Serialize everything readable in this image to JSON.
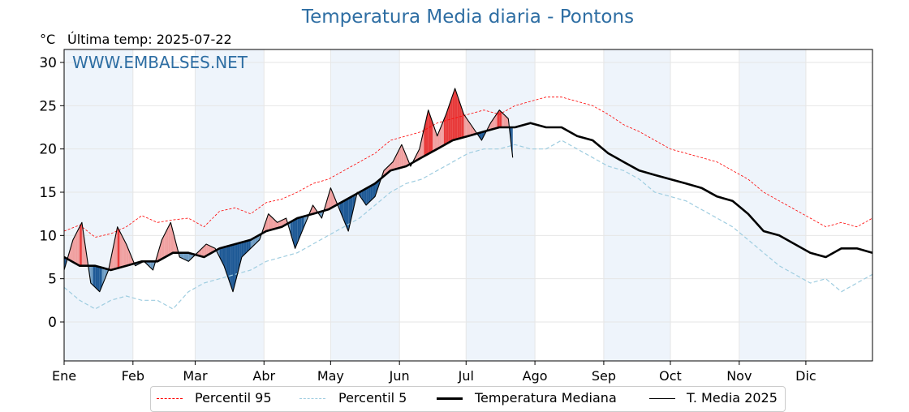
{
  "header": {
    "title": "Temperatura Media diaria - Pontons",
    "unit": "°C",
    "last_temp": "Última temp: 2025-07-22"
  },
  "watermark": "WWW.EMBALSES.NET",
  "colors": {
    "p95": "#ff0000",
    "p5": "#9fcde0",
    "median": "#000000",
    "t2025": "#000000",
    "above_fill": "#f0a0a0",
    "above_fill_strong": "#e83a3a",
    "below_fill": "#6f9dc4",
    "below_fill_strong": "#1f5a96",
    "month_band": "#eef4fb",
    "title": "#2e6ea3"
  },
  "legend": [
    {
      "key": "p95",
      "label": "Percentil 95"
    },
    {
      "key": "p5",
      "label": "Percentil 5"
    },
    {
      "key": "median",
      "label": "Temperatura Mediana"
    },
    {
      "key": "t2025",
      "label": "T. Media 2025"
    }
  ],
  "chart_data": {
    "type": "line",
    "title": "Temperatura Media diaria - Pontons",
    "xlabel": "",
    "ylabel": "°C",
    "xlim": [
      1,
      365
    ],
    "ylim": [
      -4.5,
      31.5
    ],
    "yticks": [
      0,
      5,
      10,
      15,
      20,
      25,
      30
    ],
    "month_ticks": [
      {
        "label": "Ene",
        "day": 1
      },
      {
        "label": "Feb",
        "day": 32
      },
      {
        "label": "Mar",
        "day": 60
      },
      {
        "label": "Abr",
        "day": 91
      },
      {
        "label": "May",
        "day": 121
      },
      {
        "label": "Jun",
        "day": 152
      },
      {
        "label": "Jul",
        "day": 182
      },
      {
        "label": "Ago",
        "day": 213
      },
      {
        "label": "Sep",
        "day": 244
      },
      {
        "label": "Oct",
        "day": 274
      },
      {
        "label": "Nov",
        "day": 305
      },
      {
        "label": "Dic",
        "day": 335
      }
    ],
    "shaded_months": [
      [
        1,
        32
      ],
      [
        60,
        91
      ],
      [
        121,
        152
      ],
      [
        182,
        213
      ],
      [
        244,
        274
      ],
      [
        305,
        335
      ]
    ],
    "series": [
      {
        "name": "Percentil 95",
        "key": "p95",
        "x": [
          1,
          8,
          15,
          22,
          29,
          36,
          43,
          50,
          57,
          64,
          71,
          78,
          85,
          92,
          99,
          106,
          113,
          120,
          127,
          134,
          141,
          148,
          155,
          162,
          169,
          176,
          183,
          190,
          197,
          204,
          211,
          218,
          225,
          232,
          239,
          246,
          253,
          260,
          267,
          274,
          281,
          288,
          295,
          302,
          309,
          316,
          323,
          330,
          337,
          344,
          351,
          358,
          365
        ],
        "y": [
          10.5,
          11.2,
          9.8,
          10.2,
          11.0,
          12.3,
          11.5,
          11.8,
          12.0,
          11.0,
          12.8,
          13.2,
          12.5,
          13.8,
          14.2,
          15.0,
          16.0,
          16.5,
          17.5,
          18.5,
          19.5,
          21.0,
          21.5,
          22.0,
          23.0,
          23.5,
          24.0,
          24.5,
          24.0,
          25.0,
          25.5,
          26.0,
          26.0,
          25.5,
          25.0,
          24.0,
          22.8,
          22.0,
          21.0,
          20.0,
          19.5,
          19.0,
          18.5,
          17.5,
          16.5,
          15.0,
          14.0,
          13.0,
          12.0,
          11.0,
          11.5,
          11.0,
          12.0
        ]
      },
      {
        "name": "Percentil 5",
        "key": "p5",
        "x": [
          1,
          8,
          15,
          22,
          29,
          36,
          43,
          50,
          57,
          64,
          71,
          78,
          85,
          92,
          99,
          106,
          113,
          120,
          127,
          134,
          141,
          148,
          155,
          162,
          169,
          176,
          183,
          190,
          197,
          204,
          211,
          218,
          225,
          232,
          239,
          246,
          253,
          260,
          267,
          274,
          281,
          288,
          295,
          302,
          309,
          316,
          323,
          330,
          337,
          344,
          351,
          358,
          365
        ],
        "y": [
          4.0,
          2.5,
          1.5,
          2.5,
          3.0,
          2.5,
          2.5,
          1.5,
          3.5,
          4.5,
          5.0,
          5.5,
          6.0,
          7.0,
          7.5,
          8.0,
          9.0,
          10.0,
          11.0,
          12.0,
          13.5,
          15.0,
          16.0,
          16.5,
          17.5,
          18.5,
          19.5,
          20.0,
          20.0,
          20.5,
          20.0,
          20.0,
          21.0,
          20.0,
          19.0,
          18.0,
          17.5,
          16.5,
          15.0,
          14.5,
          14.0,
          13.0,
          12.0,
          11.0,
          9.5,
          8.0,
          6.5,
          5.5,
          4.5,
          5.0,
          3.5,
          4.5,
          5.5
        ]
      },
      {
        "name": "Temperatura Mediana",
        "key": "median",
        "x": [
          1,
          8,
          15,
          22,
          29,
          36,
          43,
          50,
          57,
          64,
          71,
          78,
          85,
          92,
          99,
          106,
          113,
          120,
          127,
          134,
          141,
          148,
          155,
          162,
          169,
          176,
          183,
          190,
          197,
          204,
          211,
          218,
          225,
          232,
          239,
          246,
          253,
          260,
          267,
          274,
          281,
          288,
          295,
          302,
          309,
          316,
          323,
          330,
          337,
          344,
          351,
          358,
          365
        ],
        "y": [
          7.5,
          6.5,
          6.5,
          6.0,
          6.5,
          7.0,
          7.0,
          8.0,
          8.0,
          7.5,
          8.5,
          9.0,
          9.5,
          10.5,
          11.0,
          12.0,
          12.5,
          13.0,
          14.0,
          15.0,
          16.0,
          17.5,
          18.0,
          19.0,
          20.0,
          21.0,
          21.5,
          22.0,
          22.5,
          22.5,
          23.0,
          22.5,
          22.5,
          21.5,
          21.0,
          19.5,
          18.5,
          17.5,
          17.0,
          16.5,
          16.0,
          15.5,
          14.5,
          14.0,
          12.5,
          10.5,
          10.0,
          9.0,
          8.0,
          7.5,
          8.5,
          8.5,
          8.0
        ]
      },
      {
        "name": "T. Media 2025",
        "key": "t2025",
        "x": [
          1,
          5,
          9,
          13,
          17,
          21,
          25,
          29,
          33,
          37,
          41,
          45,
          49,
          53,
          57,
          61,
          65,
          69,
          73,
          77,
          81,
          85,
          89,
          93,
          97,
          101,
          105,
          109,
          113,
          117,
          121,
          125,
          129,
          133,
          137,
          141,
          145,
          149,
          153,
          157,
          161,
          165,
          169,
          173,
          177,
          181,
          185,
          189,
          193,
          197,
          201,
          203
        ],
        "y": [
          6.0,
          9.5,
          11.5,
          4.5,
          3.5,
          6.0,
          11.0,
          9.0,
          6.5,
          7.0,
          6.0,
          9.5,
          11.5,
          7.5,
          7.0,
          8.0,
          9.0,
          8.5,
          6.5,
          3.5,
          7.5,
          8.5,
          9.5,
          12.5,
          11.5,
          12.0,
          8.5,
          11.0,
          13.5,
          12.0,
          15.5,
          13.0,
          10.5,
          15.0,
          13.5,
          14.5,
          17.5,
          18.5,
          20.5,
          18.0,
          20.0,
          24.5,
          21.5,
          24.0,
          27.0,
          24.0,
          22.5,
          21.0,
          23.0,
          24.5,
          23.5,
          19.0
        ]
      }
    ]
  }
}
